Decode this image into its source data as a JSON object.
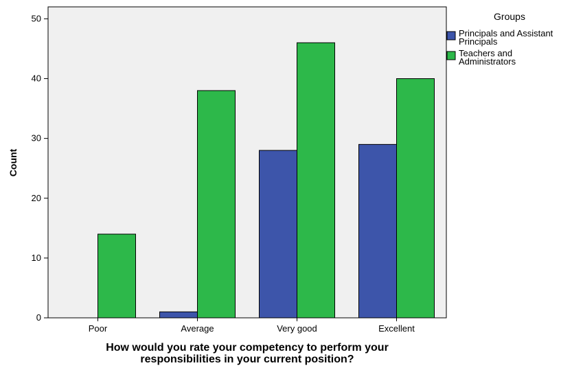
{
  "chart_data": {
    "type": "bar",
    "categories": [
      "Poor",
      "Average",
      "Very good",
      "Excellent"
    ],
    "series": [
      {
        "name": "Principals and Assistant Principals",
        "values": [
          0,
          1,
          28,
          29
        ],
        "color": "#3d55aa"
      },
      {
        "name": "Teachers and Administrators",
        "values": [
          14,
          38,
          46,
          40
        ],
        "color": "#2db84a"
      }
    ],
    "xlabel": [
      "How would you rate your competency to perform your",
      "responsibilities in your current position?"
    ],
    "ylabel": "Count",
    "ylim": [
      0,
      52
    ],
    "yticks": [
      0,
      10,
      20,
      30,
      40,
      50
    ],
    "legend": {
      "title": "Groups",
      "placement": "outside-top-right",
      "entries": [
        [
          "Principals and Assistant",
          "Principals"
        ],
        [
          "Teachers and",
          "Administrators"
        ]
      ]
    },
    "plot_background": "#f0f0f0",
    "grid": false
  }
}
